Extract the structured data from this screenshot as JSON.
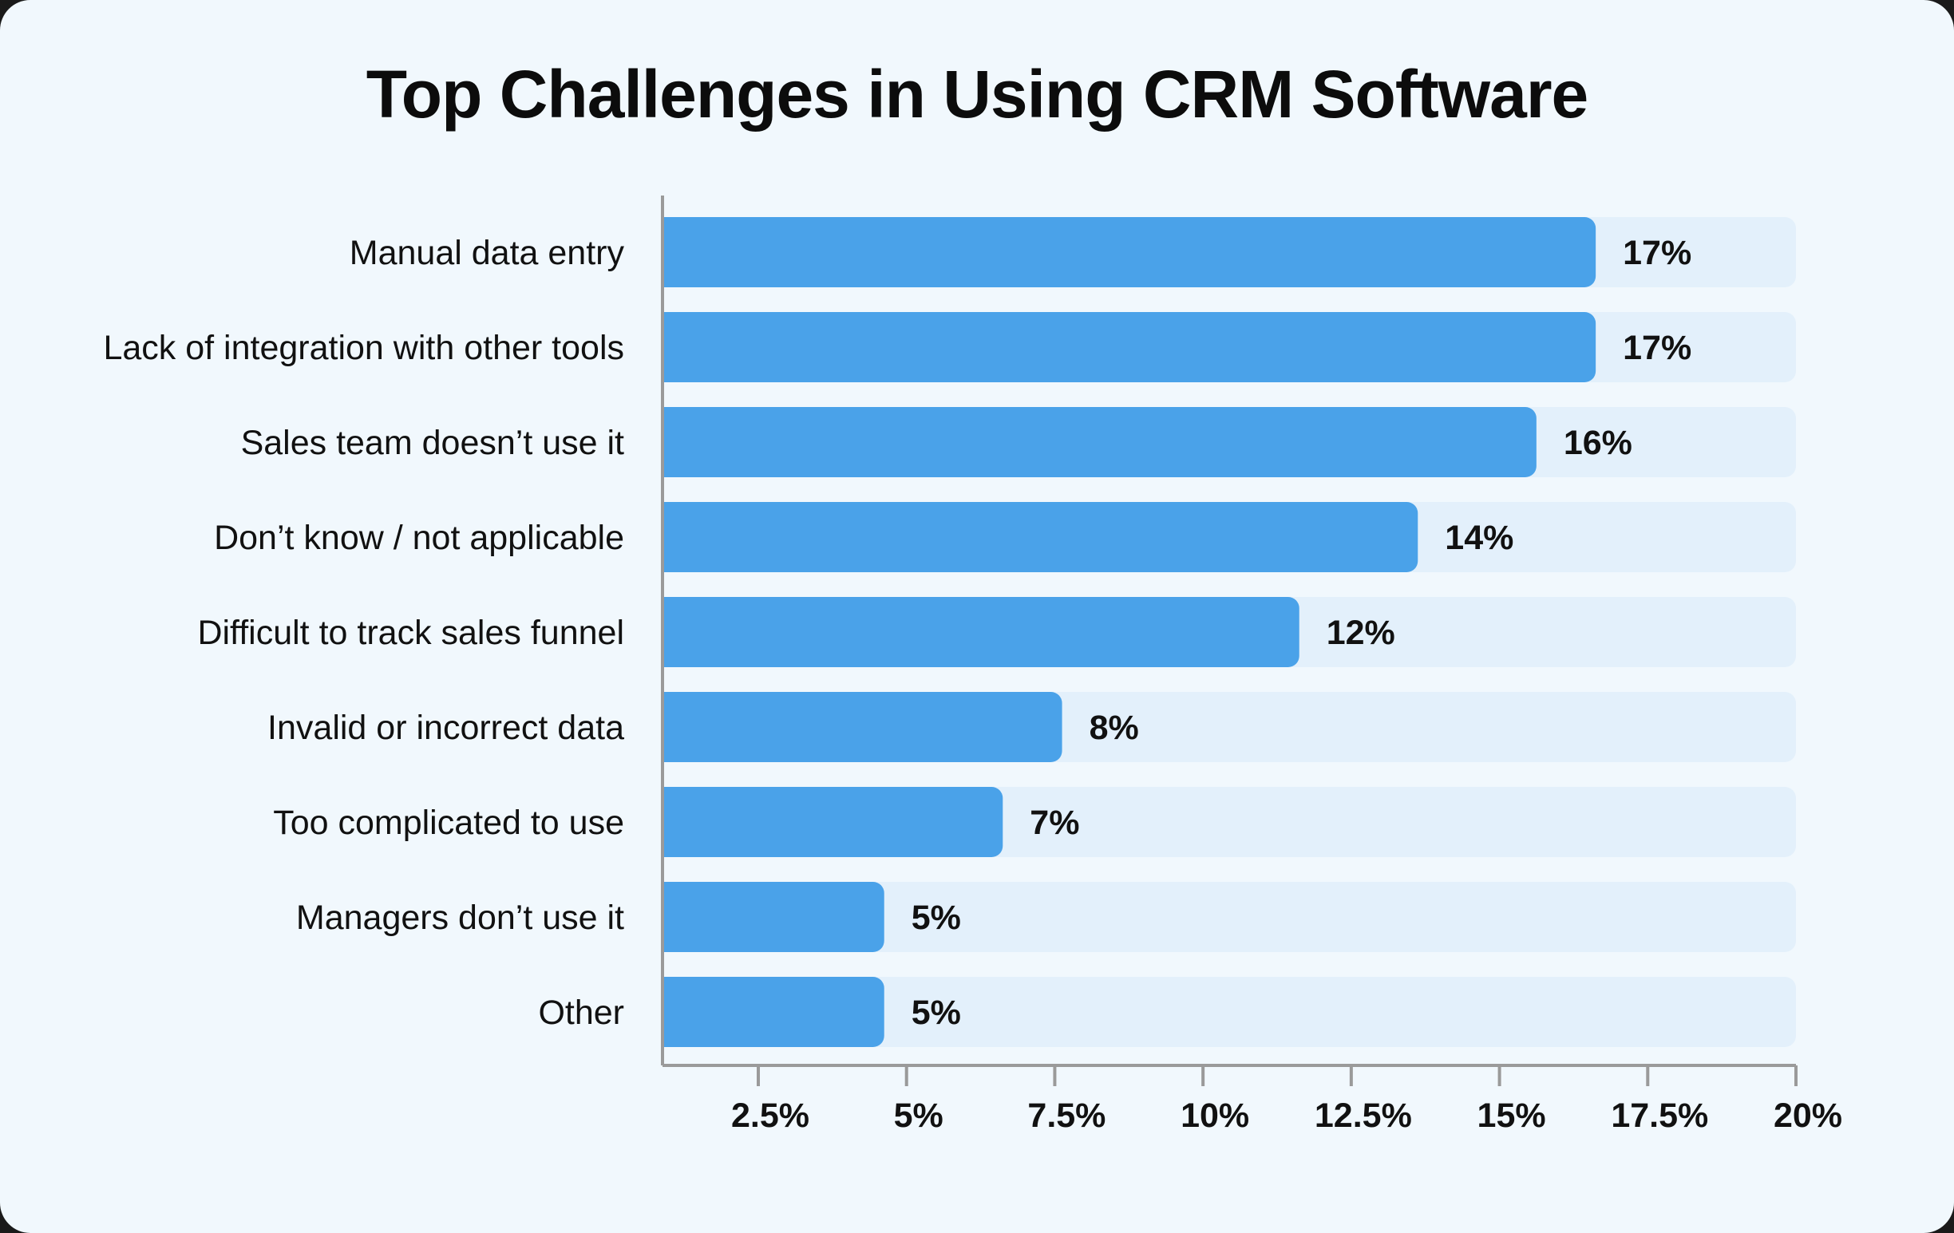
{
  "chart_data": {
    "type": "bar",
    "orientation": "horizontal",
    "title": "Top Challenges in Using CRM Software",
    "categories": [
      "Manual data entry",
      "Lack of integration with other tools",
      "Sales team doesn’t use it",
      "Don’t know / not applicable",
      "Difficult to track sales funnel",
      "Invalid or incorrect data",
      "Too complicated to use",
      "Managers don’t use it",
      "Other"
    ],
    "values": [
      17,
      17,
      16,
      14,
      12,
      8,
      7,
      5,
      5
    ],
    "value_labels": [
      "17%",
      "17%",
      "16%",
      "14%",
      "12%",
      "8%",
      "7%",
      "5%",
      "5%"
    ],
    "xlim": [
      0,
      20
    ],
    "x_ticks": [
      2.5,
      5,
      7.5,
      10,
      12.5,
      15,
      17.5,
      20
    ],
    "x_tick_labels": [
      "2.5%",
      "5%",
      "7.5%",
      "10%",
      "12.5%",
      "15%",
      "17.5%",
      "20%"
    ],
    "xlabel": "",
    "ylabel": "",
    "grid": false,
    "colors": {
      "bar": "#4aa2e9",
      "track": "#e3f0fb",
      "axis": "#9a9a9a",
      "background": "#f1f8fd"
    }
  }
}
